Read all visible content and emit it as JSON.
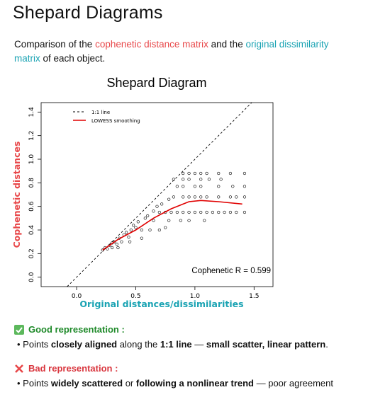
{
  "header": {
    "title": "Shepard Diagrams"
  },
  "description": [
    "Comparison of the ",
    "cophenetic distance matrix",
    " and the ",
    "original dissimilarity matrix",
    " of each object."
  ],
  "chart_data": {
    "type": "scatter",
    "title": "Shepard Diagram",
    "x_label": "Original distances/dissimilarities",
    "y_label": "Cophenetic distances",
    "xlim": [
      -0.3,
      1.66
    ],
    "ylim": [
      -0.08,
      1.48
    ],
    "xticks": [
      {
        "value": 0,
        "label": "0.0"
      },
      0.5,
      {
        "value": 1,
        "label": "1.0"
      },
      1.5
    ],
    "yticks": [
      {
        "value": 0,
        "label": "0.0"
      },
      0.2,
      0.4,
      0.6,
      0.8,
      {
        "value": 1,
        "label": "1.0"
      },
      {
        "value": 1.2,
        "label": "1.2"
      },
      {
        "value": 1.4,
        "label": "1.4"
      }
    ],
    "reference_line": {
      "name": "1:1 line",
      "color": "#000000"
    },
    "lowess": {
      "name": "LOWESS smoothing",
      "color": "#e00000",
      "x": [
        0.22,
        0.35,
        0.5,
        0.65,
        0.8,
        0.95,
        1.05,
        1.2,
        1.4
      ],
      "y": [
        0.23,
        0.32,
        0.4,
        0.5,
        0.58,
        0.64,
        0.65,
        0.64,
        0.62
      ]
    },
    "points": {
      "color": "#000000",
      "x": [
        0.22,
        0.24,
        0.26,
        0.28,
        0.3,
        0.32,
        0.34,
        0.36,
        0.38,
        0.4,
        0.42,
        0.44,
        0.46,
        0.48,
        0.5,
        0.52,
        0.55,
        0.58,
        0.6,
        0.62,
        0.65,
        0.68,
        0.7,
        0.72,
        0.75,
        0.78,
        0.3,
        0.35,
        0.45,
        0.55,
        0.7,
        0.75,
        0.8,
        0.85,
        0.9,
        0.95,
        1.0,
        1.05,
        1.1,
        1.15,
        1.2,
        1.25,
        1.3,
        1.35,
        1.42,
        0.82,
        0.9,
        0.95,
        1.0,
        1.05,
        1.1,
        1.2,
        1.3,
        1.35,
        1.42,
        0.85,
        0.9,
        1.0,
        1.05,
        1.2,
        1.32,
        1.42,
        0.82,
        0.9,
        0.95,
        1.05,
        1.12,
        1.22,
        0.9,
        0.95,
        1.0,
        1.05,
        1.1,
        1.2,
        1.3,
        1.42,
        0.65,
        0.78,
        0.88,
        0.95,
        1.08
      ],
      "y": [
        0.23,
        0.25,
        0.24,
        0.27,
        0.29,
        0.3,
        0.28,
        0.33,
        0.3,
        0.36,
        0.38,
        0.34,
        0.4,
        0.44,
        0.42,
        0.47,
        0.4,
        0.5,
        0.52,
        0.4,
        0.56,
        0.6,
        0.4,
        0.62,
        0.42,
        0.66,
        0.25,
        0.25,
        0.3,
        0.33,
        0.55,
        0.55,
        0.55,
        0.55,
        0.55,
        0.55,
        0.55,
        0.55,
        0.55,
        0.55,
        0.55,
        0.55,
        0.55,
        0.55,
        0.55,
        0.68,
        0.68,
        0.68,
        0.68,
        0.68,
        0.68,
        0.68,
        0.68,
        0.68,
        0.68,
        0.77,
        0.77,
        0.77,
        0.77,
        0.77,
        0.77,
        0.77,
        0.83,
        0.83,
        0.83,
        0.83,
        0.83,
        0.83,
        0.88,
        0.88,
        0.88,
        0.88,
        0.88,
        0.88,
        0.88,
        0.88,
        0.48,
        0.48,
        0.48,
        0.48,
        0.48
      ]
    },
    "annotation": "Cophenetic R = 0.599"
  },
  "good": {
    "title": "Good representation :",
    "bullet": [
      "Points ",
      "closely aligned",
      " along the ",
      "1:1 line",
      " — ",
      "small scatter, linear pattern",
      "."
    ]
  },
  "bad": {
    "title": "Bad representation :",
    "bullet": [
      "Points ",
      "widely scattered",
      " or ",
      "following a nonlinear trend",
      " — poor agreement"
    ]
  }
}
